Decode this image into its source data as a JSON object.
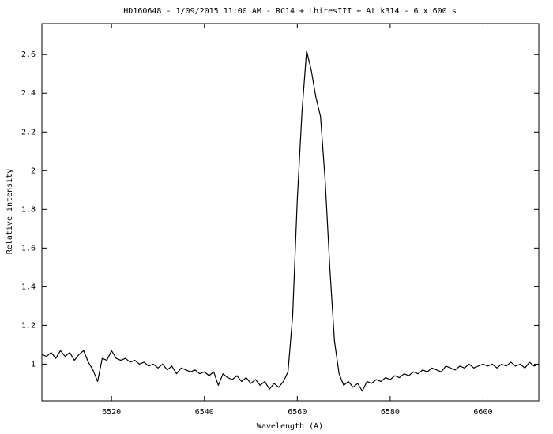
{
  "chart_data": {
    "type": "line",
    "title": "HD160648 - 1/09/2015 11:00 AM - RC14 + LhiresIII + Atik314 - 6 x 600 s",
    "x_label": "Wavelength (A)",
    "y_label": "Relative intensity",
    "xlim": [
      6505,
      6612
    ],
    "ylim": [
      0.81,
      2.76
    ],
    "xticks": [
      6520,
      6540,
      6560,
      6580,
      6600
    ],
    "yticks": [
      1,
      1.2,
      1.4,
      1.6,
      1.8,
      2,
      2.2,
      2.4,
      2.6
    ],
    "grid": false,
    "color": "#000000",
    "x": [
      6505,
      6506,
      6507,
      6508,
      6509,
      6510,
      6511,
      6512,
      6513,
      6514,
      6515,
      6516,
      6517,
      6518,
      6519,
      6520,
      6521,
      6522,
      6523,
      6524,
      6525,
      6526,
      6527,
      6528,
      6529,
      6530,
      6531,
      6532,
      6533,
      6534,
      6535,
      6536,
      6537,
      6538,
      6539,
      6540,
      6541,
      6542,
      6543,
      6544,
      6545,
      6546,
      6547,
      6548,
      6549,
      6550,
      6551,
      6552,
      6553,
      6554,
      6555,
      6556,
      6557,
      6558,
      6559,
      6560,
      6561,
      6562,
      6563,
      6564,
      6565,
      6566,
      6567,
      6568,
      6569,
      6570,
      6571,
      6572,
      6573,
      6574,
      6575,
      6576,
      6577,
      6578,
      6579,
      6580,
      6581,
      6582,
      6583,
      6584,
      6585,
      6586,
      6587,
      6588,
      6589,
      6590,
      6591,
      6592,
      6593,
      6594,
      6595,
      6596,
      6597,
      6598,
      6599,
      6600,
      6601,
      6602,
      6603,
      6604,
      6605,
      6606,
      6607,
      6608,
      6609,
      6610,
      6611,
      6612
    ],
    "values": [
      1.05,
      1.04,
      1.06,
      1.03,
      1.07,
      1.04,
      1.06,
      1.02,
      1.05,
      1.07,
      1.01,
      0.97,
      0.91,
      1.03,
      1.02,
      1.07,
      1.03,
      1.02,
      1.03,
      1.01,
      1.02,
      1.0,
      1.01,
      0.99,
      1.0,
      0.98,
      1.0,
      0.97,
      0.99,
      0.95,
      0.98,
      0.97,
      0.96,
      0.97,
      0.95,
      0.96,
      0.94,
      0.96,
      0.89,
      0.95,
      0.93,
      0.92,
      0.94,
      0.91,
      0.93,
      0.9,
      0.92,
      0.89,
      0.91,
      0.87,
      0.9,
      0.88,
      0.91,
      0.96,
      1.25,
      1.85,
      2.3,
      2.62,
      2.52,
      2.38,
      2.28,
      1.95,
      1.5,
      1.12,
      0.95,
      0.89,
      0.91,
      0.88,
      0.9,
      0.86,
      0.91,
      0.9,
      0.92,
      0.91,
      0.93,
      0.92,
      0.94,
      0.93,
      0.95,
      0.94,
      0.96,
      0.95,
      0.97,
      0.96,
      0.98,
      0.97,
      0.96,
      0.99,
      0.98,
      0.97,
      0.99,
      0.98,
      1.0,
      0.98,
      0.99,
      1.0,
      0.99,
      1.0,
      0.98,
      1.0,
      0.99,
      1.01,
      0.99,
      1.0,
      0.98,
      1.01,
      0.99,
      1.0
    ]
  }
}
